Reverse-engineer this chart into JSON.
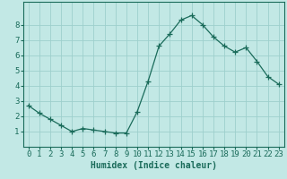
{
  "x": [
    0,
    1,
    2,
    3,
    4,
    5,
    6,
    7,
    8,
    9,
    10,
    11,
    12,
    13,
    14,
    15,
    16,
    17,
    18,
    19,
    20,
    21,
    22,
    23
  ],
  "y": [
    2.7,
    2.2,
    1.8,
    1.4,
    1.0,
    1.2,
    1.1,
    1.0,
    0.9,
    0.9,
    2.3,
    4.3,
    6.6,
    7.4,
    8.3,
    8.6,
    8.0,
    7.2,
    6.6,
    6.2,
    6.5,
    5.6,
    4.6,
    4.1
  ],
  "line_color": "#1a6b5a",
  "marker": "+",
  "marker_size": 4,
  "background_color": "#c2e8e5",
  "grid_color": "#9ecfcc",
  "xlabel": "Humidex (Indice chaleur)",
  "xlabel_fontsize": 7,
  "ylabel_ticks": [
    1,
    2,
    3,
    4,
    5,
    6,
    7,
    8
  ],
  "xlim": [
    -0.5,
    23.5
  ],
  "ylim": [
    0.0,
    9.5
  ],
  "tick_fontsize": 6.5,
  "axis_color": "#1a6b5a",
  "title": "",
  "linewidth": 0.9,
  "markeredgewidth": 0.9
}
